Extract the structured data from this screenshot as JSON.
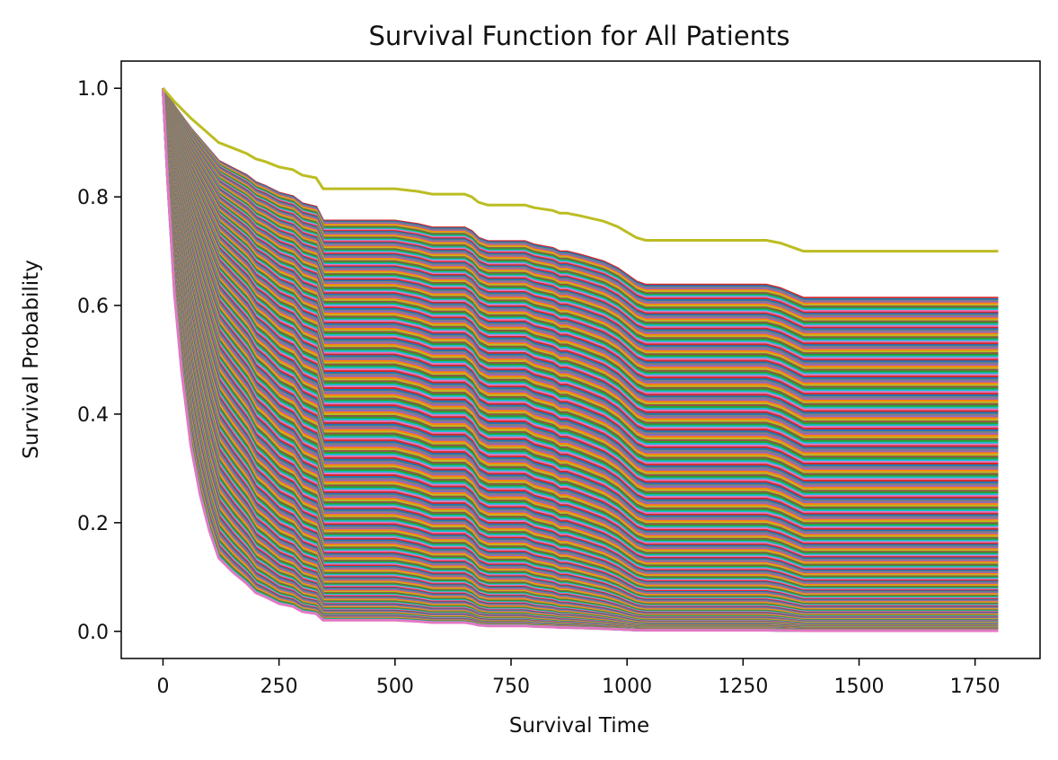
{
  "chart_data": {
    "type": "line",
    "title": "Survival Function for All Patients",
    "xlabel": "Survival Time",
    "ylabel": "Survival Probability",
    "xlim": [
      -90,
      1890
    ],
    "ylim": [
      -0.05,
      1.05
    ],
    "xticks": [
      0,
      250,
      500,
      750,
      1000,
      1250,
      1500,
      1750
    ],
    "yticks": [
      0.0,
      0.2,
      0.4,
      0.6,
      0.8,
      1.0
    ],
    "ytick_labels": [
      "0.0",
      "0.2",
      "0.4",
      "0.6",
      "0.8",
      "1.0"
    ],
    "grid": false,
    "legend": "none",
    "series_count": 300,
    "baseline_time": [
      0,
      10,
      25,
      40,
      60,
      80,
      100,
      120,
      150,
      180,
      200,
      220,
      250,
      280,
      300,
      330,
      345,
      350,
      400,
      450,
      500,
      550,
      580,
      600,
      650,
      665,
      680,
      700,
      750,
      780,
      800,
      840,
      855,
      870,
      900,
      950,
      980,
      1000,
      1020,
      1040,
      1100,
      1200,
      1300,
      1330,
      1380,
      1400,
      1500,
      1600,
      1700,
      1800
    ],
    "baseline_survival": [
      1.0,
      0.99,
      0.975,
      0.962,
      0.945,
      0.93,
      0.915,
      0.9,
      0.89,
      0.88,
      0.87,
      0.865,
      0.855,
      0.85,
      0.84,
      0.835,
      0.815,
      0.815,
      0.815,
      0.815,
      0.815,
      0.81,
      0.805,
      0.805,
      0.805,
      0.8,
      0.79,
      0.785,
      0.785,
      0.785,
      0.78,
      0.775,
      0.77,
      0.77,
      0.765,
      0.755,
      0.745,
      0.735,
      0.725,
      0.72,
      0.72,
      0.72,
      0.72,
      0.715,
      0.7,
      0.7,
      0.7,
      0.7,
      0.7,
      0.7
    ],
    "top_series": {
      "name": "",
      "color": "#bcbd22",
      "final_value": 0.7
    },
    "risk_exponent_range": [
      1.37,
      19.0
    ],
    "palette": [
      "#1f77b4",
      "#ff7f0e",
      "#2ca02c",
      "#d62728",
      "#9467bd",
      "#8c564b",
      "#e377c2",
      "#7f7f7f",
      "#bcbd22",
      "#17becf"
    ]
  }
}
